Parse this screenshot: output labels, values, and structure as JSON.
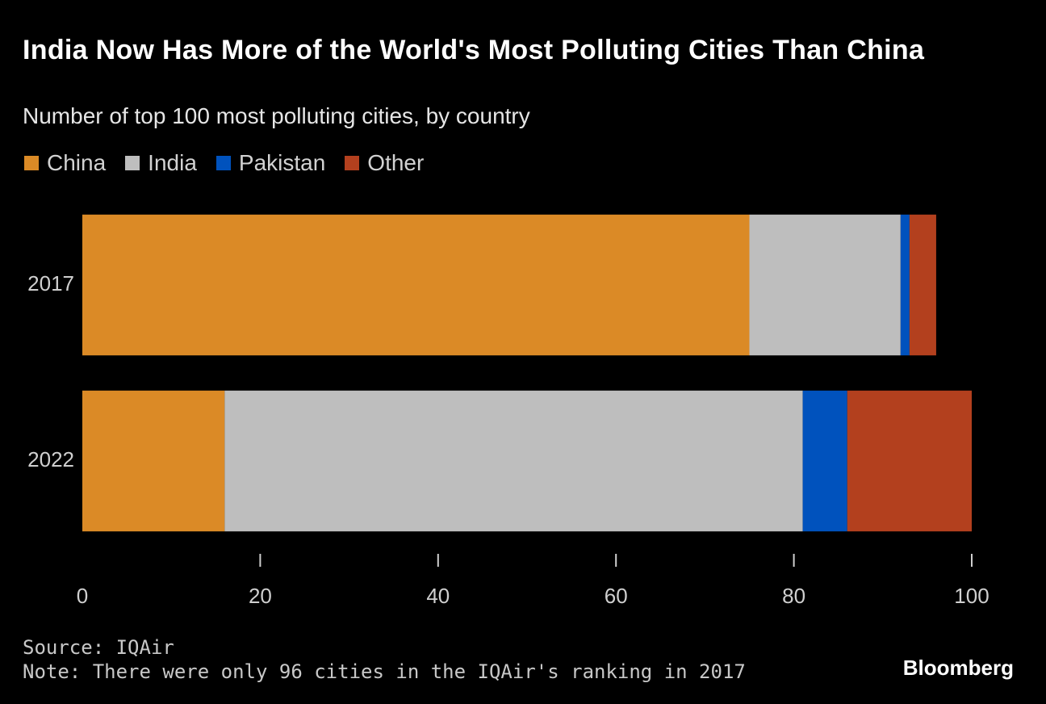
{
  "chart_data": {
    "type": "stacked-barh",
    "title": "India Now Has More of the World's Most Polluting Cities Than China",
    "subtitle": "Number of top 100 most polluting cities, by country",
    "categories": [
      "2017",
      "2022"
    ],
    "series": [
      {
        "name": "China",
        "color": "#db8a26",
        "values": [
          75,
          16
        ]
      },
      {
        "name": "India",
        "color": "#bebebe",
        "values": [
          17,
          65
        ]
      },
      {
        "name": "Pakistan",
        "color": "#0052bd",
        "values": [
          1,
          5
        ]
      },
      {
        "name": "Other",
        "color": "#b3401e",
        "values": [
          3,
          14
        ]
      }
    ],
    "xlim": [
      0,
      100
    ],
    "xticks": [
      0,
      20,
      40,
      60,
      80,
      100
    ],
    "source": "Source: IQAir",
    "note": "Note: There were only 96 cities in the IQAir's ranking in 2017",
    "brand": "Bloomberg"
  }
}
